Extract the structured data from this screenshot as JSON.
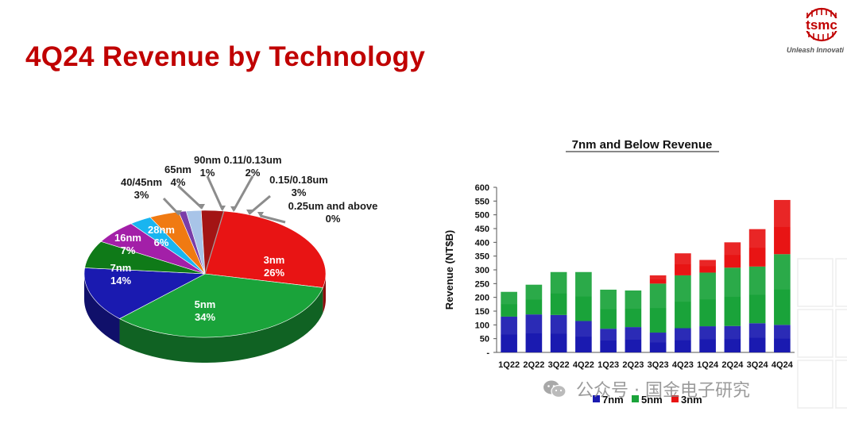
{
  "slide": {
    "title": "4Q24 Revenue by Technology",
    "logo_text": "tsmc",
    "tagline": "Unleash Innovati"
  },
  "watermark": {
    "text": "公众号 · 国金电子研究"
  },
  "chart_data": [
    {
      "type": "pie",
      "title": "",
      "slices": [
        {
          "label": "3nm",
          "value": 26,
          "pct_label": "26%",
          "color": "#e81414"
        },
        {
          "label": "5nm",
          "value": 34,
          "pct_label": "34%",
          "color": "#1aa33a"
        },
        {
          "label": "7nm",
          "value": 14,
          "pct_label": "14%",
          "color": "#1a1ab0"
        },
        {
          "label": "16nm",
          "value": 7,
          "pct_label": "7%",
          "color": "#0f7a18"
        },
        {
          "label": "28nm",
          "value": 6,
          "pct_label": "6%",
          "color": "#a31fa8"
        },
        {
          "label": "40/45nm",
          "value": 3,
          "pct_label": "3%",
          "color": "#19b5f0"
        },
        {
          "label": "65nm",
          "value": 4,
          "pct_label": "4%",
          "color": "#f07a12"
        },
        {
          "label": "90nm",
          "value": 1,
          "pct_label": "1%",
          "color": "#7a3da8"
        },
        {
          "label": "0.11/0.13um",
          "value": 2,
          "pct_label": "2%",
          "color": "#a8c4e8"
        },
        {
          "label": "0.15/0.18um",
          "value": 3,
          "pct_label": "3%",
          "color": "#a31414"
        },
        {
          "label": "0.25um and above",
          "value": 0,
          "pct_label": "0%",
          "color": "#c8c8c8"
        }
      ]
    },
    {
      "type": "bar",
      "stacked": true,
      "title": "7nm and Below Revenue",
      "xlabel": "",
      "ylabel": "Revenue (NT$B)",
      "ylim": [
        0,
        600
      ],
      "yticks": [
        "-",
        "50",
        "100",
        "150",
        "200",
        "250",
        "300",
        "350",
        "400",
        "450",
        "500",
        "550",
        "600"
      ],
      "categories": [
        "1Q22",
        "2Q22",
        "3Q22",
        "4Q22",
        "1Q23",
        "2Q23",
        "3Q23",
        "4Q23",
        "1Q24",
        "2Q24",
        "3Q24",
        "4Q24"
      ],
      "series": [
        {
          "name": "7nm",
          "color": "#1a1ab0",
          "values": [
            130,
            138,
            136,
            114,
            86,
            92,
            72,
            88,
            95,
            96,
            106,
            100
          ]
        },
        {
          "name": "5nm",
          "color": "#1aa33a",
          "values": [
            90,
            108,
            156,
            178,
            142,
            133,
            178,
            192,
            195,
            212,
            206,
            257
          ]
        },
        {
          "name": "3nm",
          "color": "#e81414",
          "values": [
            0,
            0,
            0,
            0,
            0,
            0,
            30,
            80,
            46,
            92,
            136,
            197
          ]
        }
      ],
      "legend_position": "bottom",
      "grid": false
    }
  ]
}
